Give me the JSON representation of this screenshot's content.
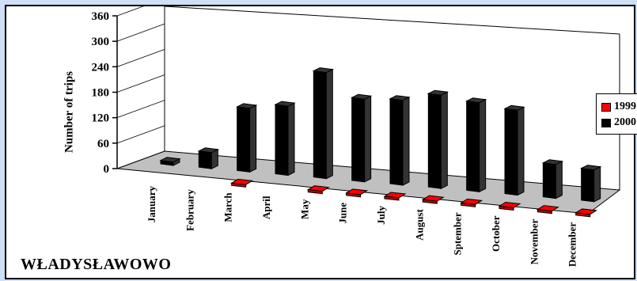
{
  "station": "WŁADYSŁAWOWO",
  "chart_data": {
    "type": "bar",
    "ylabel": "Number of trips",
    "ylim": [
      0,
      360
    ],
    "yticks": [
      "0",
      "60",
      "120",
      "180",
      "240",
      "300",
      "360"
    ],
    "categories": [
      "January",
      "February",
      "March",
      "April",
      "May",
      "June",
      "July",
      "August",
      "Sptember",
      "October",
      "November",
      "December"
    ],
    "series": [
      {
        "name": "1999",
        "color": "#ff0000",
        "values": [
          0,
          0,
          8,
          0,
          6,
          5,
          12,
          12,
          6,
          6,
          6,
          6
        ]
      },
      {
        "name": "2000",
        "color": "#000000",
        "values": [
          8,
          38,
          150,
          163,
          250,
          195,
          200,
          220,
          210,
          200,
          80,
          75
        ]
      }
    ],
    "grid": false,
    "legend_position": "right",
    "floor_color": "#c0c0c0"
  }
}
